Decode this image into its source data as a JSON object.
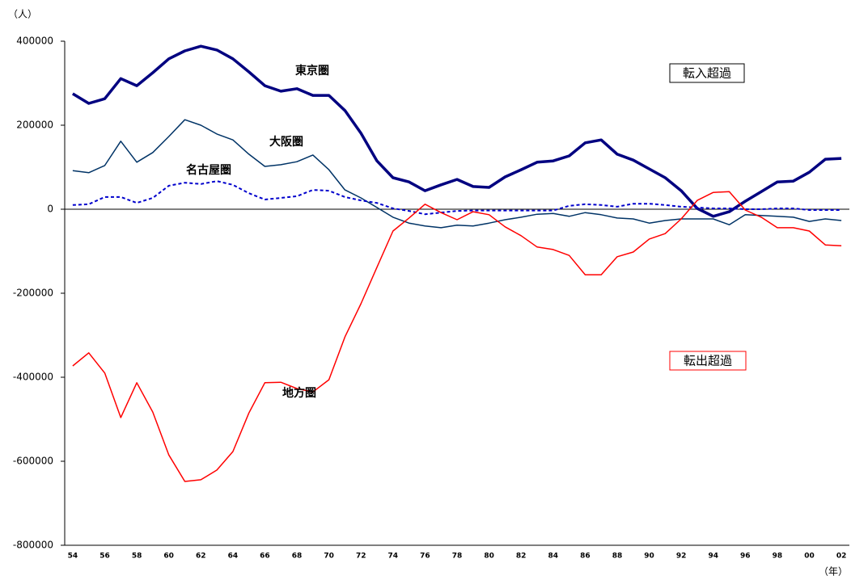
{
  "chart_data": {
    "type": "line",
    "y_label": "（人）",
    "x_label": "（年）",
    "categories": [
      "54",
      null,
      "56",
      null,
      "58",
      null,
      "60",
      null,
      "62",
      null,
      "64",
      null,
      "66",
      null,
      "68",
      null,
      "70",
      null,
      "72",
      null,
      "74",
      null,
      "76",
      null,
      "78",
      null,
      "80",
      null,
      "82",
      null,
      "84",
      null,
      "86",
      null,
      "88",
      null,
      "90",
      null,
      "92",
      null,
      "94",
      null,
      "96",
      null,
      "98",
      null,
      "00",
      null,
      "02"
    ],
    "series": [
      {
        "name": "東京圏",
        "color": "#000080",
        "values": [
          275000,
          252000,
          263000,
          311000,
          294000,
          325000,
          358000,
          377000,
          388000,
          379000,
          358000,
          327000,
          294000,
          281000,
          287000,
          271000,
          271000,
          235000,
          181000,
          115000,
          75000,
          65000,
          44000,
          58000,
          71000,
          54000,
          52000,
          77000,
          94000,
          112000,
          115000,
          127000,
          158000,
          165000,
          131000,
          117000,
          96000,
          75000,
          44000,
          2000,
          -17000,
          -6000,
          19000,
          42000,
          65000,
          67000,
          88000,
          119000,
          121000
        ]
      },
      {
        "name": "大阪圏",
        "color": "#003366",
        "values": [
          92000,
          87000,
          104000,
          162000,
          112000,
          135000,
          173000,
          213000,
          200000,
          179000,
          165000,
          131000,
          102000,
          106000,
          113000,
          129000,
          94000,
          46000,
          27000,
          4000,
          -19000,
          -33000,
          -40000,
          -44000,
          -38000,
          -40000,
          -33000,
          -25000,
          -19000,
          -12000,
          -10000,
          -17000,
          -8000,
          -13000,
          -21000,
          -23000,
          -33000,
          -27000,
          -23000,
          -23000,
          -23000,
          -37000,
          -13000,
          -15000,
          -17000,
          -19000,
          -29000,
          -23000,
          -27000
        ]
      },
      {
        "name": "名古屋圏",
        "color": "#0000cc",
        "values": [
          10000,
          12000,
          29000,
          29000,
          15000,
          27000,
          56000,
          63000,
          60000,
          67000,
          58000,
          38000,
          23000,
          27000,
          31000,
          46000,
          44000,
          29000,
          21000,
          15000,
          2000,
          -4000,
          -12000,
          -8000,
          -4000,
          -3000,
          -3000,
          -3000,
          -3000,
          -3000,
          -3000,
          8000,
          12000,
          10000,
          6000,
          13000,
          13000,
          10000,
          6000,
          4000,
          2000,
          2000,
          0,
          0,
          2000,
          2000,
          -2000,
          -2000,
          -2000
        ]
      },
      {
        "name": "地方圏",
        "color": "#ff0000",
        "values": [
          -373000,
          -342000,
          -390000,
          -496000,
          -413000,
          -483000,
          -585000,
          -648000,
          -644000,
          -621000,
          -577000,
          -485000,
          -413000,
          -412000,
          -427000,
          -435000,
          -406000,
          -304000,
          -225000,
          -138000,
          -52000,
          -21000,
          12000,
          -8000,
          -25000,
          -6000,
          -13000,
          -42000,
          -63000,
          -90000,
          -96000,
          -110000,
          -156000,
          -156000,
          -113000,
          -102000,
          -71000,
          -58000,
          -23000,
          21000,
          40000,
          42000,
          -2000,
          -19000,
          -44000,
          -44000,
          -52000,
          -85000,
          -87000
        ]
      }
    ],
    "annotations": [
      "転入超過",
      "転出超過"
    ],
    "ylim": [
      -800000,
      400000
    ],
    "yticks": [
      -800000,
      -600000,
      -400000,
      -200000,
      0,
      200000,
      400000
    ]
  }
}
